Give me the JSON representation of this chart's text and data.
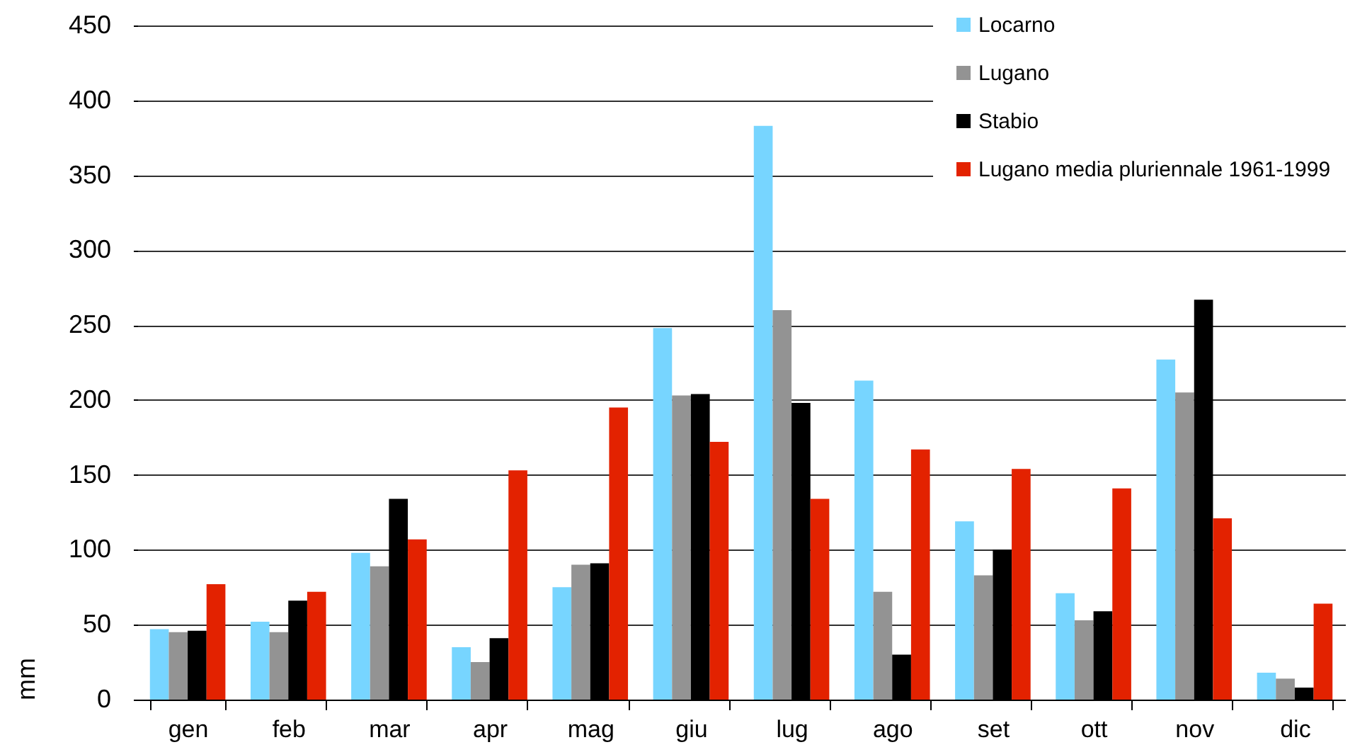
{
  "chart_data": {
    "type": "bar",
    "ylabel": "mm",
    "categories": [
      "gen",
      "feb",
      "mar",
      "apr",
      "mag",
      "giu",
      "lug",
      "ago",
      "set",
      "ott",
      "nov",
      "dic"
    ],
    "series": [
      {
        "name": "Locarno",
        "color": "#77d5ff",
        "values": [
          47,
          52,
          98,
          35,
          75,
          248,
          383,
          213,
          119,
          71,
          227,
          18
        ]
      },
      {
        "name": "Lugano",
        "color": "#939393",
        "values": [
          45,
          45,
          89,
          25,
          90,
          203,
          260,
          72,
          83,
          53,
          205,
          14
        ]
      },
      {
        "name": "Stabio",
        "color": "#000000",
        "values": [
          46,
          66,
          134,
          41,
          91,
          204,
          198,
          30,
          100,
          59,
          267,
          8
        ]
      },
      {
        "name": "Lugano media pluriennale 1961-1999",
        "color": "#e32200",
        "values": [
          77,
          72,
          107,
          153,
          195,
          172,
          134,
          167,
          154,
          141,
          121,
          64
        ]
      }
    ],
    "ylim": [
      0,
      450
    ],
    "yticks": [
      0,
      50,
      100,
      150,
      200,
      250,
      300,
      350,
      400,
      450
    ],
    "grid": "y",
    "legend": "top right"
  }
}
